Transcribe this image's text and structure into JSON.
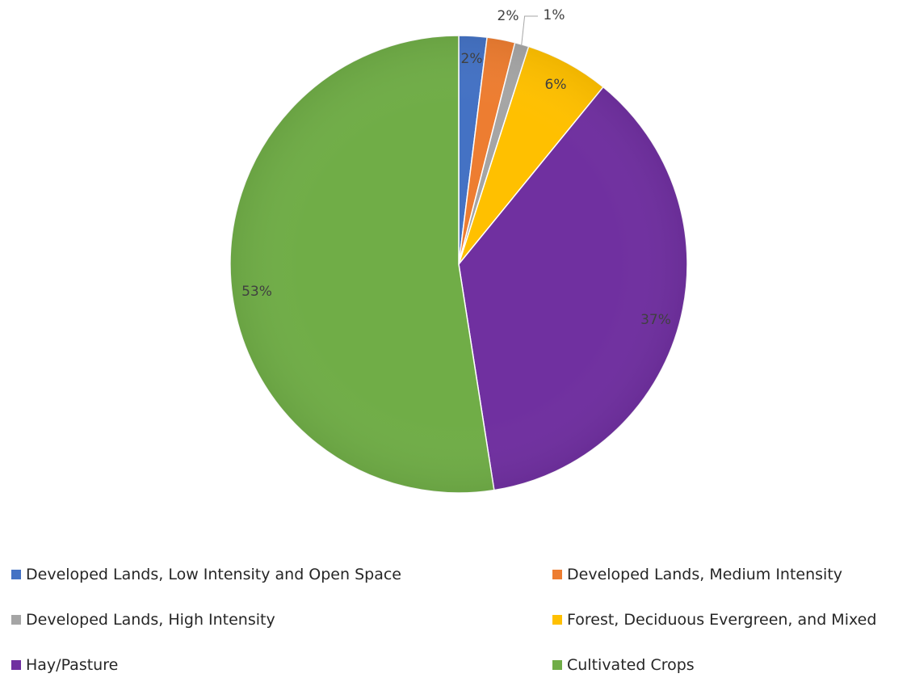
{
  "chart_data": {
    "type": "pie",
    "title": "",
    "unit": "%",
    "start_angle_deg": 0,
    "direction": "clockwise",
    "legend_position": "bottom",
    "slices": [
      {
        "label": "Developed Lands, Low Intensity and Open Space",
        "value": 2,
        "display": "2%",
        "color": "#4472C4"
      },
      {
        "label": "Developed Lands, Medium Intensity",
        "value": 2,
        "display": "2%",
        "color": "#ED7D31"
      },
      {
        "label": "Developed Lands, High Intensity",
        "value": 1,
        "display": "1%",
        "color": "#A5A5A5"
      },
      {
        "label": "Forest, Deciduous Evergreen, and Mixed",
        "value": 6,
        "display": "6%",
        "color": "#FFC000"
      },
      {
        "label": "Hay/Pasture",
        "value": 37,
        "display": "37%",
        "color": "#7030A0"
      },
      {
        "label": "Cultivated Crops",
        "value": 53,
        "display": "53%",
        "color": "#70AD47"
      }
    ]
  }
}
